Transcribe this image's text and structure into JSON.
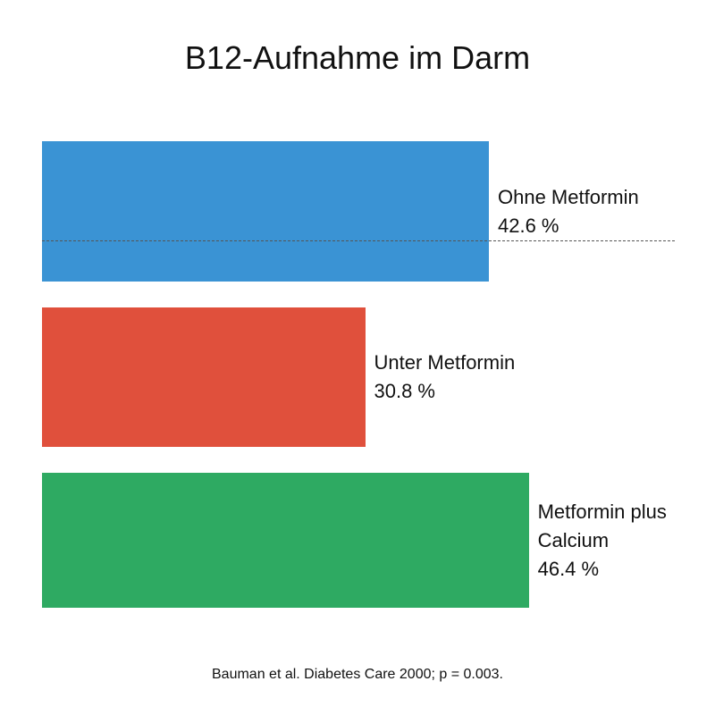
{
  "chart_data": {
    "type": "bar",
    "orientation": "horizontal",
    "title": "B12-Aufnahme im Darm",
    "categories": [
      "Ohne Metformin",
      "Unter Metformin",
      "Metformin plus Calcium"
    ],
    "values": [
      42.6,
      30.8,
      46.4
    ],
    "value_labels": [
      "42.6 %",
      "30.8 %",
      "46.4 %"
    ],
    "colors": [
      "#3a93d4",
      "#e0503c",
      "#2eaa62"
    ],
    "source": "Bauman et al. Diabetes Care 2000; p = 0.003."
  }
}
